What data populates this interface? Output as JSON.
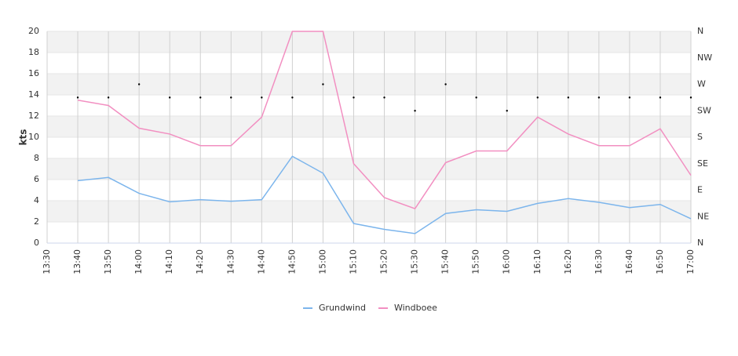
{
  "chart_data": {
    "type": "line",
    "y_label": "kts",
    "categories": [
      "13:30",
      "13:40",
      "13:50",
      "14:00",
      "14:10",
      "14:20",
      "14:30",
      "14:40",
      "14:50",
      "15:00",
      "15:10",
      "15:20",
      "15:30",
      "15:40",
      "15:50",
      "16:00",
      "16:10",
      "16:20",
      "16:30",
      "16:40",
      "16:50",
      "17:00"
    ],
    "series": [
      {
        "name": "Grundwind",
        "color": "#7cb5ec",
        "values": [
          null,
          5.9,
          6.2,
          4.7,
          3.9,
          4.1,
          3.95,
          4.1,
          8.2,
          6.6,
          1.85,
          1.3,
          0.9,
          2.8,
          3.15,
          3.0,
          3.75,
          4.2,
          3.85,
          3.35,
          3.65,
          2.3
        ]
      },
      {
        "name": "Windboee",
        "color": "#f28fc1",
        "values": [
          null,
          13.5,
          13.0,
          10.85,
          10.3,
          9.2,
          9.2,
          11.9,
          20,
          20,
          7.5,
          4.3,
          3.25,
          7.6,
          8.7,
          8.7,
          11.9,
          10.3,
          9.2,
          9.2,
          10.8,
          6.4
        ]
      }
    ],
    "direction": {
      "axis": "y2",
      "color": "#000000",
      "values": [
        null,
        247.5,
        247.5,
        270,
        247.5,
        247.5,
        247.5,
        247.5,
        247.5,
        270,
        247.5,
        247.5,
        225,
        270,
        247.5,
        225,
        247.5,
        247.5,
        247.5,
        247.5,
        247.5,
        247.5
      ]
    },
    "ylim": [
      0,
      20
    ],
    "yticks": [
      0,
      2,
      4,
      6,
      8,
      10,
      12,
      14,
      16,
      18,
      20
    ],
    "y2lim": [
      0,
      360
    ],
    "y2ticks": [
      {
        "value": 0,
        "label": "N"
      },
      {
        "value": 45,
        "label": "NE"
      },
      {
        "value": 90,
        "label": "E"
      },
      {
        "value": 135,
        "label": "SE"
      },
      {
        "value": 180,
        "label": "S"
      },
      {
        "value": 225,
        "label": "SW"
      },
      {
        "value": 270,
        "label": "W"
      },
      {
        "value": 315,
        "label": "NW"
      },
      {
        "value": 360,
        "label": "N"
      }
    ],
    "grid": true,
    "legend": "bottom"
  }
}
